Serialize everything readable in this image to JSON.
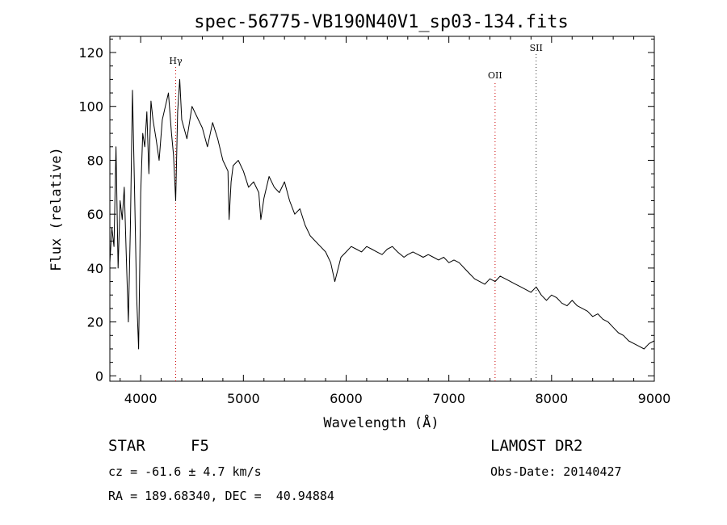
{
  "chart_data": {
    "type": "line",
    "title": "spec-56775-VB190N40V1_sp03-134.fits",
    "xlabel": "Wavelength (Å)",
    "ylabel": "Flux (relative)",
    "xlim": [
      3700,
      9000
    ],
    "ylim": [
      -2,
      126
    ],
    "x_ticks": [
      4000,
      5000,
      6000,
      7000,
      8000,
      9000
    ],
    "y_ticks": [
      0,
      20,
      40,
      60,
      80,
      100,
      120
    ],
    "grid": false,
    "legend": "none",
    "line_color": "#000000",
    "line_markers": [
      {
        "label": "Hγ",
        "x": 4341,
        "style": "dotted",
        "color": "#cc0000"
      },
      {
        "label": "OII",
        "x": 7450,
        "style": "dotted",
        "color": "#cc0000"
      },
      {
        "label": "SII",
        "x": 7850,
        "style": "dotted",
        "color": "#333333"
      }
    ],
    "series": [
      {
        "x": [
          3700,
          3720,
          3740,
          3760,
          3780,
          3800,
          3820,
          3840,
          3860,
          3880,
          3900,
          3920,
          3940,
          3960,
          3980,
          4000,
          4020,
          4040,
          4060,
          4080,
          4100,
          4120,
          4150,
          4180,
          4210,
          4240,
          4270,
          4300,
          4320,
          4341,
          4360,
          4380,
          4400,
          4450,
          4500,
          4550,
          4600,
          4650,
          4700,
          4750,
          4800,
          4850,
          4861,
          4880,
          4900,
          4950,
          5000,
          5050,
          5100,
          5150,
          5170,
          5200,
          5250,
          5300,
          5350,
          5400,
          5450,
          5500,
          5550,
          5600,
          5650,
          5700,
          5750,
          5800,
          5850,
          5890,
          5950,
          6000,
          6050,
          6100,
          6150,
          6200,
          6250,
          6300,
          6350,
          6400,
          6450,
          6500,
          6563,
          6600,
          6650,
          6700,
          6750,
          6800,
          6850,
          6900,
          6950,
          7000,
          7050,
          7100,
          7150,
          7200,
          7250,
          7300,
          7350,
          7400,
          7450,
          7500,
          7550,
          7600,
          7650,
          7700,
          7750,
          7800,
          7850,
          7900,
          7950,
          8000,
          8050,
          8100,
          8150,
          8200,
          8250,
          8300,
          8350,
          8400,
          8450,
          8500,
          8550,
          8600,
          8650,
          8700,
          8750,
          8800,
          8850,
          8900,
          8950,
          9000
        ],
        "y": [
          42,
          55,
          48,
          85,
          40,
          65,
          58,
          70,
          45,
          20,
          55,
          106,
          70,
          30,
          10,
          68,
          90,
          85,
          98,
          75,
          102,
          95,
          88,
          80,
          95,
          100,
          105,
          90,
          82,
          65,
          98,
          110,
          95,
          88,
          100,
          96,
          92,
          85,
          94,
          88,
          80,
          76,
          58,
          72,
          78,
          80,
          76,
          70,
          72,
          68,
          58,
          66,
          74,
          70,
          68,
          72,
          65,
          60,
          62,
          56,
          52,
          50,
          48,
          46,
          42,
          35,
          44,
          46,
          48,
          47,
          46,
          48,
          47,
          46,
          45,
          47,
          48,
          46,
          44,
          45,
          46,
          45,
          44,
          45,
          44,
          43,
          44,
          42,
          43,
          42,
          40,
          38,
          36,
          35,
          34,
          36,
          35,
          37,
          36,
          35,
          34,
          33,
          32,
          31,
          33,
          30,
          28,
          30,
          29,
          27,
          26,
          28,
          26,
          25,
          24,
          22,
          23,
          21,
          20,
          18,
          16,
          15,
          13,
          12,
          11,
          10,
          12,
          13
        ]
      }
    ]
  },
  "info": {
    "object_class": "STAR",
    "subclass": "F5",
    "survey": "LAMOST DR2",
    "cz": "cz = -61.6 ± 4.7 km/s",
    "obs_date": "Obs-Date: 20140427",
    "coords": "RA = 189.68340, DEC =  40.94884"
  }
}
